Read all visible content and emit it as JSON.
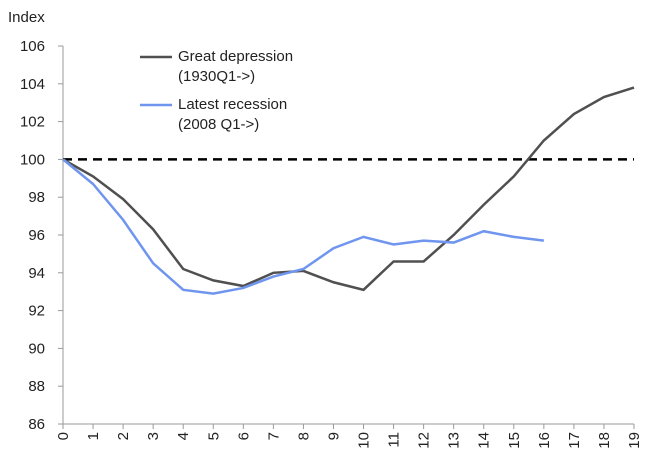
{
  "chart_data": {
    "type": "line",
    "y_label": "Index",
    "x": [
      0,
      1,
      2,
      3,
      4,
      5,
      6,
      7,
      8,
      9,
      10,
      11,
      12,
      13,
      14,
      15,
      16,
      17,
      18,
      19
    ],
    "xlim": [
      0,
      19
    ],
    "xticks": [
      0,
      1,
      2,
      3,
      4,
      5,
      6,
      7,
      8,
      9,
      10,
      11,
      12,
      13,
      14,
      15,
      16,
      17,
      18,
      19
    ],
    "ylim": [
      86,
      106
    ],
    "yticks": [
      86,
      88,
      90,
      92,
      94,
      96,
      98,
      100,
      102,
      104,
      106
    ],
    "grid": false,
    "reference_line": 100,
    "series": [
      {
        "name": "Great depression\n(1930Q1->)",
        "color": "#505050",
        "values": [
          100,
          99.1,
          97.9,
          96.3,
          94.2,
          93.6,
          93.3,
          94.0,
          94.1,
          93.5,
          93.1,
          94.6,
          94.6,
          96.0,
          97.6,
          99.1,
          101.0,
          102.4,
          103.3,
          103.8
        ]
      },
      {
        "name": "Latest recession\n(2008 Q1->)",
        "color": "#6f95ee",
        "values": [
          100,
          98.7,
          96.8,
          94.5,
          93.1,
          92.9,
          93.2,
          93.8,
          94.2,
          95.3,
          95.9,
          95.5,
          95.7,
          95.6,
          96.2,
          95.9,
          95.7,
          null,
          null,
          null
        ]
      }
    ]
  }
}
